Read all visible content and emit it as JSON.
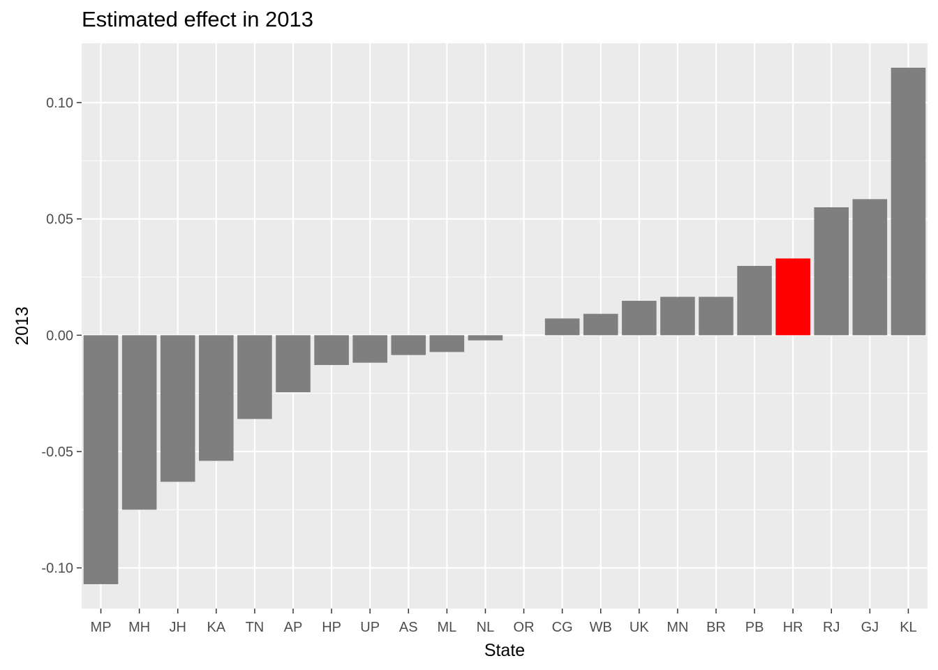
{
  "chart_data": {
    "type": "bar",
    "title": "Estimated effect in 2013",
    "xlabel": "State",
    "ylabel": "2013",
    "categories": [
      "MP",
      "MH",
      "JH",
      "KA",
      "TN",
      "AP",
      "HP",
      "UP",
      "AS",
      "ML",
      "NL",
      "OR",
      "CG",
      "WB",
      "UK",
      "MN",
      "BR",
      "PB",
      "HR",
      "RJ",
      "GJ",
      "KL"
    ],
    "values": [
      -0.107,
      -0.075,
      -0.063,
      -0.054,
      -0.036,
      -0.0245,
      -0.0128,
      -0.0118,
      -0.0085,
      -0.0072,
      -0.0022,
      0.0,
      0.0072,
      0.0092,
      0.0148,
      0.0165,
      0.0165,
      0.0298,
      0.033,
      0.055,
      0.0585,
      0.115
    ],
    "highlight": {
      "category": "HR",
      "color": "#ff0000"
    },
    "bar_color": "#7f7f7f",
    "panel_background": "#ebebeb",
    "grid": true,
    "yticks": [
      -0.1,
      -0.05,
      0.0,
      0.05,
      0.1
    ],
    "ytick_labels": [
      "-0.10",
      "-0.05",
      "0.00",
      "0.05",
      "0.10"
    ],
    "ylim": [
      -0.1175,
      0.1255
    ]
  }
}
